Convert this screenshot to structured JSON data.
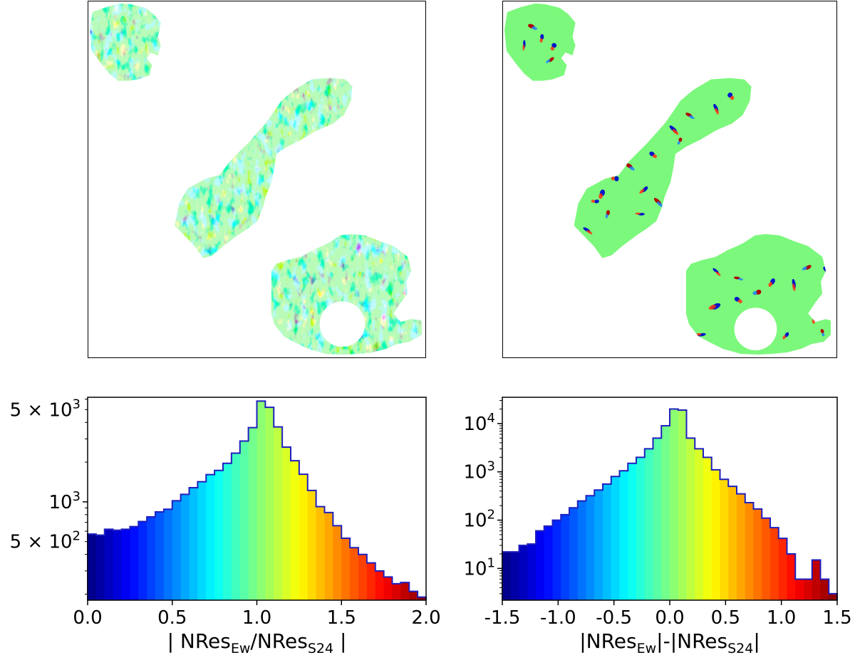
{
  "colors": {
    "colormap": "jet",
    "step_edge": "#1f1fbf",
    "map_background": "#7cf87c"
  },
  "maps": [
    {
      "name": "ratio-map",
      "colormap": "jet",
      "texture": "high-noise"
    },
    {
      "name": "difference-map",
      "colormap": "jet",
      "texture": "low-noise"
    }
  ],
  "chart_data": [
    {
      "type": "bar",
      "histtype": "step-filled-colormap",
      "xlabel": "| NRes",
      "xlabel_sub1": "Ew",
      "xlabel_mid": "/NRes",
      "xlabel_sub2": "S24",
      "xlabel_end": " |",
      "xlim": [
        0.0,
        2.0
      ],
      "ylim": [
        180,
        6200
      ],
      "yscale": "log",
      "x_ticks": [
        0.0,
        0.5,
        1.0,
        1.5,
        2.0
      ],
      "x_tick_labels": [
        "0.0",
        "0.5",
        "1.0",
        "1.5",
        "2.0"
      ],
      "y_tick_labels": [
        {
          "value": 500,
          "base": "5 × 10",
          "exp": "2"
        },
        {
          "value": 1000,
          "base": "10",
          "exp": "3"
        },
        {
          "value": 5000,
          "base": "5 × 10",
          "exp": "3"
        }
      ],
      "bin_edges": [
        0.0,
        0.05,
        0.1,
        0.15,
        0.2,
        0.25,
        0.3,
        0.35,
        0.4,
        0.45,
        0.5,
        0.55,
        0.6,
        0.65,
        0.7,
        0.75,
        0.8,
        0.85,
        0.9,
        0.95,
        1.0,
        1.05,
        1.1,
        1.15,
        1.2,
        1.25,
        1.3,
        1.35,
        1.4,
        1.45,
        1.5,
        1.55,
        1.6,
        1.65,
        1.7,
        1.75,
        1.8,
        1.85,
        1.9,
        1.95,
        2.0
      ],
      "values": [
        570,
        560,
        620,
        610,
        620,
        650,
        710,
        770,
        840,
        880,
        1020,
        1140,
        1280,
        1420,
        1610,
        1730,
        1960,
        2340,
        2890,
        3650,
        5800,
        5200,
        3700,
        2600,
        2050,
        1620,
        1220,
        920,
        830,
        660,
        530,
        450,
        400,
        345,
        300,
        270,
        240,
        245,
        210,
        190
      ]
    },
    {
      "type": "bar",
      "histtype": "step-filled-colormap",
      "xlabel": "|NRes",
      "xlabel_sub1": "Ew",
      "xlabel_mid": "|-|NRes",
      "xlabel_sub2": "S24",
      "xlabel_end": "|",
      "xlim": [
        -1.5,
        1.5
      ],
      "ylim": [
        2.2,
        35000
      ],
      "yscale": "log",
      "x_ticks": [
        -1.5,
        -1.0,
        -0.5,
        0.0,
        0.5,
        1.0,
        1.5
      ],
      "x_tick_labels": [
        "-1.5",
        "-1.0",
        "-0.5",
        "0.0",
        "0.5",
        "1.0",
        "1.5"
      ],
      "y_tick_labels": [
        {
          "value": 10,
          "base": "10",
          "exp": "1"
        },
        {
          "value": 100,
          "base": "10",
          "exp": "2"
        },
        {
          "value": 1000,
          "base": "10",
          "exp": "3"
        },
        {
          "value": 10000,
          "base": "10",
          "exp": "4"
        }
      ],
      "bin_edges": [
        -1.5,
        -1.425,
        -1.35,
        -1.275,
        -1.2,
        -1.125,
        -1.05,
        -0.975,
        -0.9,
        -0.825,
        -0.75,
        -0.675,
        -0.6,
        -0.525,
        -0.45,
        -0.375,
        -0.3,
        -0.225,
        -0.15,
        -0.075,
        0.0,
        0.075,
        0.15,
        0.225,
        0.3,
        0.375,
        0.45,
        0.525,
        0.6,
        0.675,
        0.75,
        0.825,
        0.9,
        0.975,
        1.05,
        1.125,
        1.2,
        1.275,
        1.35,
        1.425,
        1.5
      ],
      "values": [
        22,
        22,
        30,
        32,
        60,
        75,
        100,
        130,
        180,
        250,
        320,
        420,
        560,
        800,
        1050,
        1500,
        2000,
        3000,
        5000,
        9000,
        20000,
        19000,
        5000,
        3000,
        2000,
        1100,
        700,
        500,
        350,
        230,
        170,
        110,
        70,
        42,
        20,
        6,
        6,
        15,
        6,
        3
      ]
    }
  ]
}
